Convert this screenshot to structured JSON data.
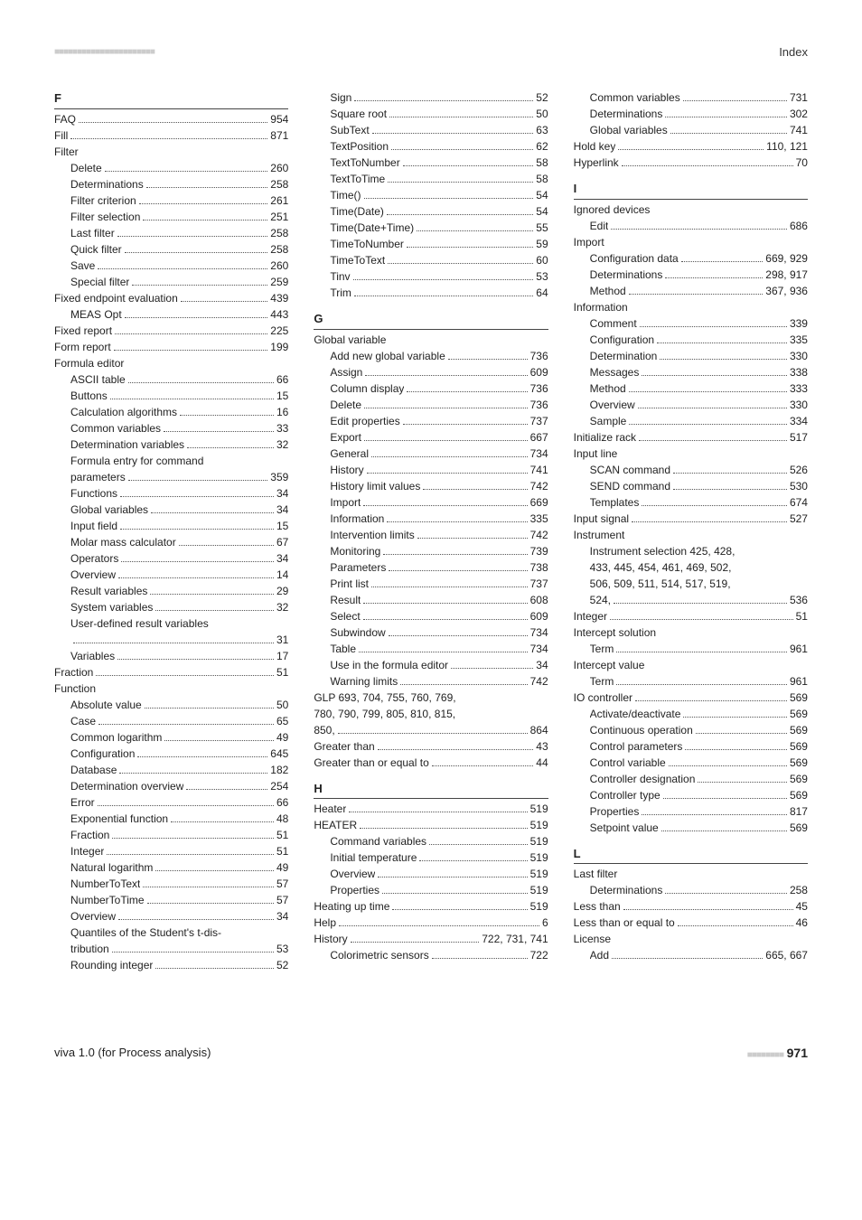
{
  "colors": {
    "text": "#222222",
    "rule": "#444444",
    "dots": "#555555",
    "marks": "#cccccc",
    "background": "#ffffff"
  },
  "typography": {
    "body_pt": 12,
    "heading_pt": 13,
    "footer_pagenum_pt": 14
  },
  "header": {
    "left_marks": "■■■■■■■■■■■■■■■■■■■■■■",
    "right_label": "Index"
  },
  "footer": {
    "left_text": "viva 1.0 (for Process analysis)",
    "bar_marks": "■■■■■■■■",
    "page_number": "971"
  },
  "col1": [
    {
      "type": "letter",
      "t": "F"
    },
    {
      "type": "entry",
      "label": "FAQ",
      "page": "954"
    },
    {
      "type": "entry",
      "label": "Fill",
      "page": "871"
    },
    {
      "type": "plain",
      "t": "Filter"
    },
    {
      "type": "entry",
      "i": 1,
      "label": "Delete",
      "page": "260"
    },
    {
      "type": "entry",
      "i": 1,
      "label": "Determinations",
      "page": "258"
    },
    {
      "type": "entry",
      "i": 1,
      "label": "Filter criterion",
      "page": "261"
    },
    {
      "type": "entry",
      "i": 1,
      "label": "Filter selection",
      "page": "251"
    },
    {
      "type": "entry",
      "i": 1,
      "label": "Last filter",
      "page": "258"
    },
    {
      "type": "entry",
      "i": 1,
      "label": "Quick filter",
      "page": "258"
    },
    {
      "type": "entry",
      "i": 1,
      "label": "Save",
      "page": "260"
    },
    {
      "type": "entry",
      "i": 1,
      "label": "Special filter",
      "page": "259"
    },
    {
      "type": "entry",
      "label": "Fixed endpoint evaluation",
      "page": "439"
    },
    {
      "type": "entry",
      "i": 1,
      "label": "MEAS Opt",
      "page": "443"
    },
    {
      "type": "entry",
      "label": "Fixed report",
      "page": "225"
    },
    {
      "type": "entry",
      "label": "Form report",
      "page": "199"
    },
    {
      "type": "plain",
      "t": "Formula editor"
    },
    {
      "type": "entry",
      "i": 1,
      "label": "ASCII table",
      "page": "66"
    },
    {
      "type": "entry",
      "i": 1,
      "label": "Buttons",
      "page": "15"
    },
    {
      "type": "entry",
      "i": 1,
      "label": "Calculation algorithms",
      "page": "16"
    },
    {
      "type": "entry",
      "i": 1,
      "label": "Common variables",
      "page": "33"
    },
    {
      "type": "entry",
      "i": 1,
      "label": "Determination variables",
      "page": "32"
    },
    {
      "type": "plain",
      "i": 1,
      "t": "Formula entry for command"
    },
    {
      "type": "entry",
      "i": 1,
      "label": "parameters",
      "page": "359"
    },
    {
      "type": "entry",
      "i": 1,
      "label": "Functions",
      "page": "34"
    },
    {
      "type": "entry",
      "i": 1,
      "label": "Global variables",
      "page": "34"
    },
    {
      "type": "entry",
      "i": 1,
      "label": "Input field",
      "page": "15"
    },
    {
      "type": "entry",
      "i": 1,
      "label": "Molar mass calculator",
      "page": "67"
    },
    {
      "type": "entry",
      "i": 1,
      "label": "Operators",
      "page": "34"
    },
    {
      "type": "entry",
      "i": 1,
      "label": "Overview",
      "page": "14"
    },
    {
      "type": "entry",
      "i": 1,
      "label": "Result variables",
      "page": "29"
    },
    {
      "type": "entry",
      "i": 1,
      "label": "System variables",
      "page": "32"
    },
    {
      "type": "plain",
      "i": 1,
      "t": "User-defined result variables"
    },
    {
      "type": "entry",
      "i": 1,
      "label": "",
      "page": "31"
    },
    {
      "type": "entry",
      "i": 1,
      "label": "Variables",
      "page": "17"
    },
    {
      "type": "entry",
      "label": "Fraction",
      "page": "51"
    },
    {
      "type": "plain",
      "t": "Function"
    },
    {
      "type": "entry",
      "i": 1,
      "label": "Absolute value",
      "page": "50"
    },
    {
      "type": "entry",
      "i": 1,
      "label": "Case",
      "page": "65"
    },
    {
      "type": "entry",
      "i": 1,
      "label": "Common logarithm",
      "page": "49"
    },
    {
      "type": "entry",
      "i": 1,
      "label": "Configuration",
      "page": "645"
    },
    {
      "type": "entry",
      "i": 1,
      "label": "Database",
      "page": "182"
    },
    {
      "type": "entry",
      "i": 1,
      "label": "Determination overview",
      "page": "254"
    },
    {
      "type": "entry",
      "i": 1,
      "label": "Error",
      "page": "66"
    },
    {
      "type": "entry",
      "i": 1,
      "label": "Exponential function",
      "page": "48"
    },
    {
      "type": "entry",
      "i": 1,
      "label": "Fraction",
      "page": "51"
    },
    {
      "type": "entry",
      "i": 1,
      "label": "Integer",
      "page": "51"
    },
    {
      "type": "entry",
      "i": 1,
      "label": "Natural logarithm",
      "page": "49"
    },
    {
      "type": "entry",
      "i": 1,
      "label": "NumberToText",
      "page": "57"
    },
    {
      "type": "entry",
      "i": 1,
      "label": "NumberToTime",
      "page": "57"
    },
    {
      "type": "entry",
      "i": 1,
      "label": "Overview",
      "page": "34"
    },
    {
      "type": "plain",
      "i": 1,
      "t": "Quantiles of the Student's t-dis-"
    },
    {
      "type": "entry",
      "i": 1,
      "label": "tribution",
      "page": "53"
    },
    {
      "type": "entry",
      "i": 1,
      "label": "Rounding integer",
      "page": "52"
    }
  ],
  "col2": [
    {
      "type": "entry",
      "i": 1,
      "label": "Sign",
      "page": "52"
    },
    {
      "type": "entry",
      "i": 1,
      "label": "Square root",
      "page": "50"
    },
    {
      "type": "entry",
      "i": 1,
      "label": "SubText",
      "page": "63"
    },
    {
      "type": "entry",
      "i": 1,
      "label": "TextPosition",
      "page": "62"
    },
    {
      "type": "entry",
      "i": 1,
      "label": "TextToNumber",
      "page": "58"
    },
    {
      "type": "entry",
      "i": 1,
      "label": "TextToTime",
      "page": "58"
    },
    {
      "type": "entry",
      "i": 1,
      "label": "Time()",
      "page": "54"
    },
    {
      "type": "entry",
      "i": 1,
      "label": "Time(Date)",
      "page": "54"
    },
    {
      "type": "entry",
      "i": 1,
      "label": "Time(Date+Time)",
      "page": "55"
    },
    {
      "type": "entry",
      "i": 1,
      "label": "TimeToNumber",
      "page": "59"
    },
    {
      "type": "entry",
      "i": 1,
      "label": "TimeToText",
      "page": "60"
    },
    {
      "type": "entry",
      "i": 1,
      "label": "Tinv",
      "page": "53"
    },
    {
      "type": "entry",
      "i": 1,
      "label": "Trim",
      "page": "64"
    },
    {
      "type": "letter",
      "t": "G"
    },
    {
      "type": "plain",
      "t": "Global variable"
    },
    {
      "type": "entry",
      "i": 1,
      "label": "Add new global variable",
      "page": "736"
    },
    {
      "type": "entry",
      "i": 1,
      "label": "Assign",
      "page": "609"
    },
    {
      "type": "entry",
      "i": 1,
      "label": "Column display",
      "page": "736"
    },
    {
      "type": "entry",
      "i": 1,
      "label": "Delete",
      "page": "736"
    },
    {
      "type": "entry",
      "i": 1,
      "label": "Edit properties",
      "page": "737"
    },
    {
      "type": "entry",
      "i": 1,
      "label": "Export",
      "page": "667"
    },
    {
      "type": "entry",
      "i": 1,
      "label": "General",
      "page": "734"
    },
    {
      "type": "entry",
      "i": 1,
      "label": "History",
      "page": "741"
    },
    {
      "type": "entry",
      "i": 1,
      "label": "History limit values",
      "page": "742"
    },
    {
      "type": "entry",
      "i": 1,
      "label": "Import",
      "page": "669"
    },
    {
      "type": "entry",
      "i": 1,
      "label": "Information",
      "page": "335"
    },
    {
      "type": "entry",
      "i": 1,
      "label": "Intervention limits",
      "page": "742"
    },
    {
      "type": "entry",
      "i": 1,
      "label": "Monitoring",
      "page": "739"
    },
    {
      "type": "entry",
      "i": 1,
      "label": "Parameters",
      "page": "738"
    },
    {
      "type": "entry",
      "i": 1,
      "label": "Print list",
      "page": "737"
    },
    {
      "type": "entry",
      "i": 1,
      "label": "Result",
      "page": "608"
    },
    {
      "type": "entry",
      "i": 1,
      "label": "Select",
      "page": "609"
    },
    {
      "type": "entry",
      "i": 1,
      "label": "Subwindow",
      "page": "734"
    },
    {
      "type": "entry",
      "i": 1,
      "label": "Table",
      "page": "734"
    },
    {
      "type": "entry",
      "i": 1,
      "label": "Use in the formula editor",
      "page": "34"
    },
    {
      "type": "entry",
      "i": 1,
      "label": "Warning limits",
      "page": "742"
    },
    {
      "type": "plain",
      "t": "GLP   693, 704, 755, 760, 769,"
    },
    {
      "type": "plain",
      "t": "780, 790, 799, 805, 810, 815,"
    },
    {
      "type": "entry",
      "label": "850,",
      "page": "864"
    },
    {
      "type": "entry",
      "label": "Greater than",
      "page": "43"
    },
    {
      "type": "entry",
      "label": "Greater than or equal to",
      "page": "44"
    },
    {
      "type": "letter",
      "t": "H"
    },
    {
      "type": "entry",
      "label": "Heater",
      "page": "519"
    },
    {
      "type": "entry",
      "label": "HEATER",
      "page": "519"
    },
    {
      "type": "entry",
      "i": 1,
      "label": "Command variables",
      "page": "519"
    },
    {
      "type": "entry",
      "i": 1,
      "label": "Initial temperature",
      "page": "519"
    },
    {
      "type": "entry",
      "i": 1,
      "label": "Overview",
      "page": "519"
    },
    {
      "type": "entry",
      "i": 1,
      "label": "Properties",
      "page": "519"
    },
    {
      "type": "entry",
      "label": "Heating up time",
      "page": "519"
    },
    {
      "type": "entry",
      "label": "Help",
      "page": "6"
    },
    {
      "type": "entry",
      "label": "History",
      "page": "722, 731, 741"
    },
    {
      "type": "entry",
      "i": 1,
      "label": "Colorimetric sensors",
      "page": "722"
    }
  ],
  "col3": [
    {
      "type": "entry",
      "i": 1,
      "label": "Common variables",
      "page": "731"
    },
    {
      "type": "entry",
      "i": 1,
      "label": "Determinations",
      "page": "302"
    },
    {
      "type": "entry",
      "i": 1,
      "label": "Global variables",
      "page": "741"
    },
    {
      "type": "entry",
      "label": "Hold key",
      "page": "110, 121"
    },
    {
      "type": "entry",
      "label": "Hyperlink",
      "page": "70"
    },
    {
      "type": "letter",
      "t": "I"
    },
    {
      "type": "plain",
      "t": "Ignored devices"
    },
    {
      "type": "entry",
      "i": 1,
      "label": "Edit",
      "page": "686"
    },
    {
      "type": "plain",
      "t": "Import"
    },
    {
      "type": "entry",
      "i": 1,
      "label": "Configuration data",
      "page": "669, 929"
    },
    {
      "type": "entry",
      "i": 1,
      "label": "Determinations",
      "page": "298, 917"
    },
    {
      "type": "entry",
      "i": 1,
      "label": "Method",
      "page": "367, 936"
    },
    {
      "type": "plain",
      "t": "Information"
    },
    {
      "type": "entry",
      "i": 1,
      "label": "Comment",
      "page": "339"
    },
    {
      "type": "entry",
      "i": 1,
      "label": "Configuration",
      "page": "335"
    },
    {
      "type": "entry",
      "i": 1,
      "label": "Determination",
      "page": "330"
    },
    {
      "type": "entry",
      "i": 1,
      "label": "Messages",
      "page": "338"
    },
    {
      "type": "entry",
      "i": 1,
      "label": "Method",
      "page": "333"
    },
    {
      "type": "entry",
      "i": 1,
      "label": "Overview",
      "page": "330"
    },
    {
      "type": "entry",
      "i": 1,
      "label": "Sample",
      "page": "334"
    },
    {
      "type": "entry",
      "label": "Initialize rack",
      "page": "517"
    },
    {
      "type": "plain",
      "t": "Input line"
    },
    {
      "type": "entry",
      "i": 1,
      "label": "SCAN command",
      "page": "526"
    },
    {
      "type": "entry",
      "i": 1,
      "label": "SEND command",
      "page": "530"
    },
    {
      "type": "entry",
      "i": 1,
      "label": "Templates",
      "page": "674"
    },
    {
      "type": "entry",
      "label": "Input signal",
      "page": "527"
    },
    {
      "type": "plain",
      "t": "Instrument"
    },
    {
      "type": "plain",
      "i": 1,
      "t": "Instrument selection   425, 428,"
    },
    {
      "type": "plain",
      "i": 1,
      "t": "433, 445, 454, 461, 469, 502,"
    },
    {
      "type": "plain",
      "i": 1,
      "t": "506, 509, 511, 514, 517, 519,"
    },
    {
      "type": "entry",
      "i": 1,
      "label": "524,",
      "page": "536"
    },
    {
      "type": "entry",
      "label": "Integer",
      "page": "51"
    },
    {
      "type": "plain",
      "t": "Intercept solution"
    },
    {
      "type": "entry",
      "i": 1,
      "label": "Term",
      "page": "961"
    },
    {
      "type": "plain",
      "t": "Intercept value"
    },
    {
      "type": "entry",
      "i": 1,
      "label": "Term",
      "page": "961"
    },
    {
      "type": "entry",
      "label": "IO controller",
      "page": "569"
    },
    {
      "type": "entry",
      "i": 1,
      "label": "Activate/deactivate",
      "page": "569"
    },
    {
      "type": "entry",
      "i": 1,
      "label": "Continuous operation",
      "page": "569"
    },
    {
      "type": "entry",
      "i": 1,
      "label": "Control parameters",
      "page": "569"
    },
    {
      "type": "entry",
      "i": 1,
      "label": "Control variable",
      "page": "569"
    },
    {
      "type": "entry",
      "i": 1,
      "label": "Controller designation",
      "page": "569"
    },
    {
      "type": "entry",
      "i": 1,
      "label": "Controller type",
      "page": "569"
    },
    {
      "type": "entry",
      "i": 1,
      "label": "Properties",
      "page": "817"
    },
    {
      "type": "entry",
      "i": 1,
      "label": "Setpoint value",
      "page": "569"
    },
    {
      "type": "letter",
      "t": "L"
    },
    {
      "type": "plain",
      "t": "Last filter"
    },
    {
      "type": "entry",
      "i": 1,
      "label": "Determinations",
      "page": "258"
    },
    {
      "type": "entry",
      "label": "Less than",
      "page": "45"
    },
    {
      "type": "entry",
      "label": "Less than or equal to",
      "page": "46"
    },
    {
      "type": "plain",
      "t": "License"
    },
    {
      "type": "entry",
      "i": 1,
      "label": "Add",
      "page": "665, 667"
    }
  ]
}
